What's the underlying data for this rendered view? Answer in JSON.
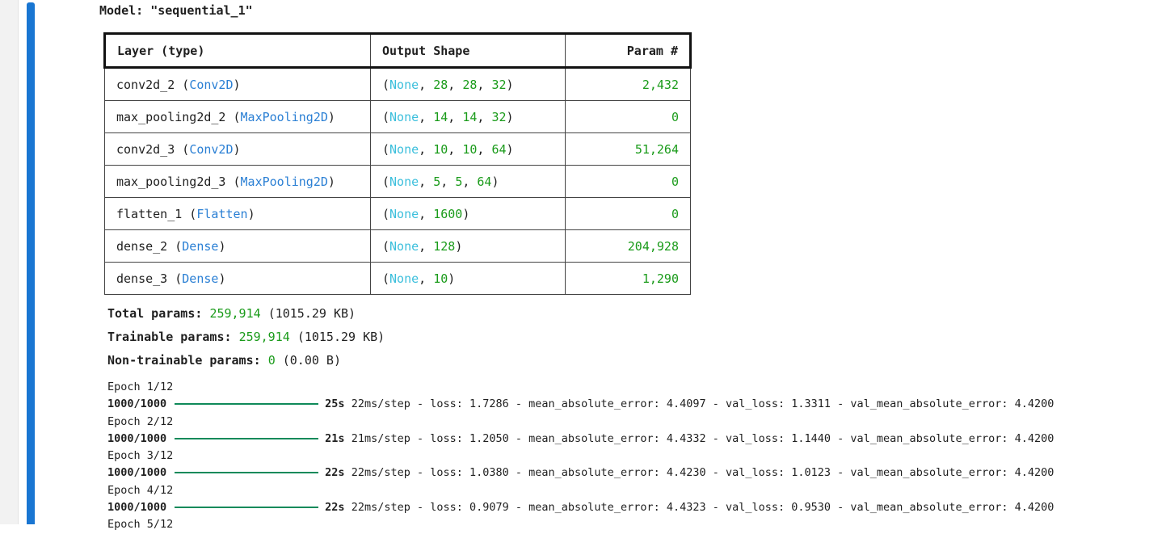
{
  "model": {
    "title": "Model: \"sequential_1\""
  },
  "table": {
    "headers": {
      "layer": "Layer (type)",
      "shape": "Output Shape",
      "params": "Param #"
    },
    "rows": [
      {
        "name": "conv2d_2",
        "type": "Conv2D",
        "dims": [
          "28",
          "28",
          "32"
        ],
        "params": "2,432"
      },
      {
        "name": "max_pooling2d_2",
        "type": "MaxPooling2D",
        "dims": [
          "14",
          "14",
          "32"
        ],
        "params": "0"
      },
      {
        "name": "conv2d_3",
        "type": "Conv2D",
        "dims": [
          "10",
          "10",
          "64"
        ],
        "params": "51,264"
      },
      {
        "name": "max_pooling2d_3",
        "type": "MaxPooling2D",
        "dims": [
          "5",
          "5",
          "64"
        ],
        "params": "0"
      },
      {
        "name": "flatten_1",
        "type": "Flatten",
        "dims": [
          "1600"
        ],
        "params": "0"
      },
      {
        "name": "dense_2",
        "type": "Dense",
        "dims": [
          "128"
        ],
        "params": "204,928"
      },
      {
        "name": "dense_3",
        "type": "Dense",
        "dims": [
          "10"
        ],
        "params": "1,290"
      }
    ],
    "none_token": "None"
  },
  "totals": {
    "total": {
      "label": "Total params:",
      "value": "259,914",
      "size": "(1015.29 KB)"
    },
    "trainable": {
      "label": "Trainable params:",
      "value": "259,914",
      "size": "(1015.29 KB)"
    },
    "non_trainable": {
      "label": "Non-trainable params:",
      "value": "0",
      "size": "(0.00 B)"
    }
  },
  "training_log": [
    {
      "epoch": "Epoch 1/12",
      "steps": "1000/1000",
      "time": "25s",
      "step_time": "22ms/step",
      "metrics": "- loss: 1.7286 - mean_absolute_error: 4.4097 - val_loss: 1.3311 - val_mean_absolute_error: 4.4200"
    },
    {
      "epoch": "Epoch 2/12",
      "steps": "1000/1000",
      "time": "21s",
      "step_time": "21ms/step",
      "metrics": "- loss: 1.2050 - mean_absolute_error: 4.4332 - val_loss: 1.1440 - val_mean_absolute_error: 4.4200"
    },
    {
      "epoch": "Epoch 3/12",
      "steps": "1000/1000",
      "time": "22s",
      "step_time": "22ms/step",
      "metrics": "- loss: 1.0380 - mean_absolute_error: 4.4230 - val_loss: 1.0123 - val_mean_absolute_error: 4.4200"
    },
    {
      "epoch": "Epoch 4/12",
      "steps": "1000/1000",
      "time": "22s",
      "step_time": "22ms/step",
      "metrics": "- loss: 0.9079 - mean_absolute_error: 4.4323 - val_loss: 0.9530 - val_mean_absolute_error: 4.4200"
    },
    {
      "epoch": "Epoch 5/12"
    }
  ],
  "colors": {
    "cell_indicator": "#1976d2",
    "layer_type": "#2a7fd4",
    "none_keyword": "#3cbfdc",
    "number": "#1a9b1a",
    "progress_bar": "#0f8a5a"
  }
}
